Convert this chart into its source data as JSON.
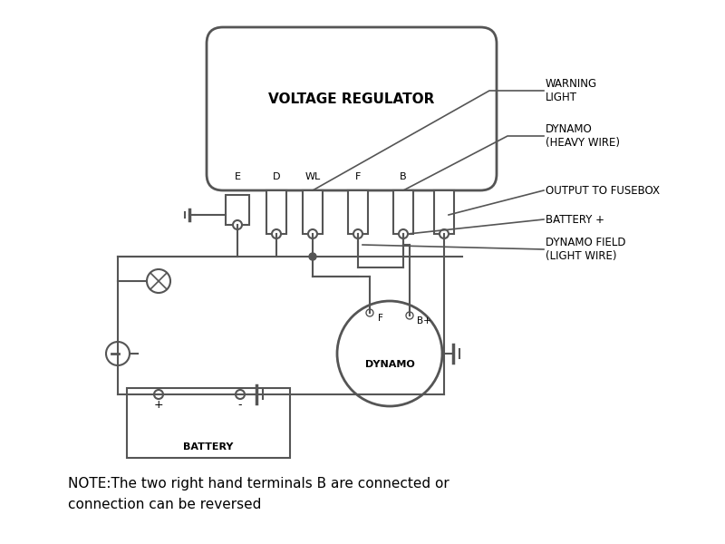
{
  "bg_color": "#ffffff",
  "line_color": "#555555",
  "text_color": "#000000",
  "title": "VOLTAGE REGULATOR",
  "note_text": "NOTE:The two right hand terminals B are connected or\nconnection can be reversed",
  "terminals": [
    "E",
    "D",
    "WL",
    "F",
    "B"
  ],
  "dynamo_label": "DYNAMO",
  "dynamo_f_label": "F",
  "dynamo_b_label": "B+",
  "battery_label": "BATTERY",
  "battery_plus": "+",
  "battery_minus": "-",
  "label_warning": "WARNING\nLIGHT",
  "label_dynamo_hw": "DYNAMO\n(HEAVY WIRE)",
  "label_fusebox": "OUTPUT TO FUSEBOX",
  "label_battery_plus": "BATTERY +",
  "label_dynamo_field": "DYNAMO FIELD\n(LIGHT WIRE)"
}
